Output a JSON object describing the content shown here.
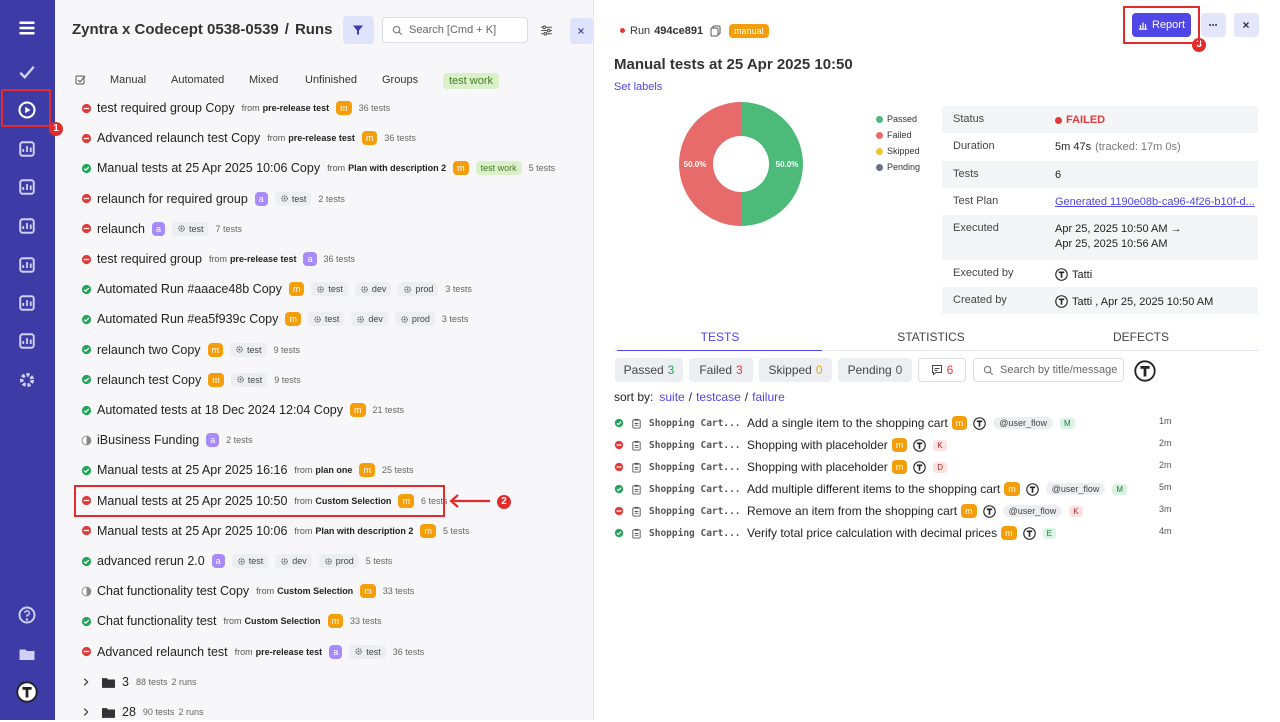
{
  "header": {
    "project": "Zyntra x Codecept 0538-0539",
    "separator": "/",
    "section": "Runs",
    "search_placeholder": "Search [Cmd + K]"
  },
  "tabs": [
    "Manual",
    "Automated",
    "Mixed",
    "Unfinished",
    "Groups",
    "test work"
  ],
  "runs": [
    {
      "status": "failed",
      "title": "test required group Copy",
      "from": "from",
      "plan": "pre-release test",
      "badge": "m",
      "tests": "36 tests"
    },
    {
      "status": "failed",
      "title": "Advanced relaunch test Copy",
      "from": "from",
      "plan": "pre-release test",
      "badge": "m",
      "tests": "36 tests"
    },
    {
      "status": "passed",
      "title": "Manual tests at 25 Apr 2025 10:06 Copy",
      "from": "from",
      "plan": "Plan with description 2",
      "badge": "m",
      "label": "test work",
      "tests": "5 tests"
    },
    {
      "status": "failed",
      "title": "relaunch for required group",
      "badge": "a",
      "tags": [
        "test"
      ],
      "tests": "2 tests"
    },
    {
      "status": "failed",
      "title": "relaunch",
      "badge": "a",
      "tags": [
        "test"
      ],
      "tests": "7 tests"
    },
    {
      "status": "failed",
      "title": "test required group",
      "from": "from",
      "plan": "pre-release test",
      "badge": "a",
      "tests": "36 tests"
    },
    {
      "status": "passed",
      "title": "Automated Run #aaace48b Copy",
      "badge": "m",
      "tags": [
        "test",
        "dev",
        "prod"
      ],
      "tests": "3 tests"
    },
    {
      "status": "passed",
      "title": "Automated Run #ea5f939c Copy",
      "badge": "m",
      "tags": [
        "test",
        "dev",
        "prod"
      ],
      "tests": "3 tests"
    },
    {
      "status": "passed",
      "title": "relaunch two Copy",
      "badge": "m",
      "tags": [
        "test"
      ],
      "tests": "9 tests"
    },
    {
      "status": "passed",
      "title": "relaunch test Copy",
      "badge": "m",
      "tags": [
        "test"
      ],
      "tests": "9 tests"
    },
    {
      "status": "passed",
      "title": "Automated tests at 18 Dec 2024 12:04 Copy",
      "badge": "m",
      "tests": "21 tests"
    },
    {
      "status": "mixed",
      "title": "iBusiness Funding",
      "badge": "a",
      "tests": "2 tests"
    },
    {
      "status": "passed",
      "title": "Manual tests at 25 Apr 2025 16:16",
      "from": "from",
      "plan": "plan one",
      "badge": "m",
      "tests": "25 tests"
    },
    {
      "status": "failed",
      "title": "Manual tests at 25 Apr 2025 10:50",
      "from": "from",
      "plan": "Custom Selection",
      "badge": "m",
      "tests": "6 tests",
      "selected": true
    },
    {
      "status": "failed",
      "title": "Manual tests at 25 Apr 2025 10:06",
      "from": "from",
      "plan": "Plan with description 2",
      "badge": "m",
      "tests": "5 tests"
    },
    {
      "status": "passed",
      "title": "advanced rerun 2.0",
      "badge": "a",
      "tags": [
        "test",
        "dev",
        "prod"
      ],
      "tests": "5 tests"
    },
    {
      "status": "mixed",
      "title": "Chat functionality test Copy",
      "from": "from",
      "plan": "Custom Selection",
      "badge": "m",
      "tests": "33 tests"
    },
    {
      "status": "passed",
      "title": "Chat functionality test",
      "from": "from",
      "plan": "Custom Selection",
      "badge": "m",
      "tests": "33 tests"
    },
    {
      "status": "failed",
      "title": "Advanced relaunch test",
      "from": "from",
      "plan": "pre-release test",
      "badge": "a",
      "tags": [
        "test"
      ],
      "tests": "36 tests"
    }
  ],
  "groups": [
    {
      "name": "3",
      "tests": "88 tests",
      "runs": "2 runs"
    },
    {
      "name": "28",
      "tests": "90 tests",
      "runs": "2 runs"
    }
  ],
  "run": {
    "label": "Run",
    "id": "494ce891",
    "kind": "manual",
    "report": "Report",
    "title": "Manual tests at 25 Apr 2025 10:50",
    "set_labels": "Set labels"
  },
  "donut": {
    "type": "pie",
    "slices": [
      {
        "name": "Passed",
        "color": "#4cbb7a",
        "value": 50,
        "value_label": "50.0%"
      },
      {
        "name": "Failed",
        "color": "#e76b6b",
        "value": 50,
        "value_label": "50.0%"
      },
      {
        "name": "Skipped",
        "color": "#f0c23b",
        "value": 0
      },
      {
        "name": "Pending",
        "color": "#6b7280",
        "value": 0
      }
    ]
  },
  "details": {
    "status": [
      "Status",
      "FAILED"
    ],
    "duration": [
      "Duration",
      "5m 47s",
      "(tracked: 17m 0s)"
    ],
    "tests": [
      "Tests",
      "6"
    ],
    "plan": [
      "Test Plan",
      "Generated 1190e08b-ca96-4f26-b10f-d..."
    ],
    "executed": [
      "Executed",
      "Apr 25, 2025 10:50 AM →",
      "Apr 25, 2025 10:56 AM"
    ],
    "executed_by": [
      "Executed by",
      "Tatti"
    ],
    "created_by": [
      "Created by",
      "Tatti , Apr 25, 2025 10:50 AM"
    ]
  },
  "detail_tabs": [
    "TESTS",
    "STATISTICS",
    "DEFECTS"
  ],
  "filters": [
    {
      "name": "Passed",
      "count": "3",
      "color": "#22a55a"
    },
    {
      "name": "Failed",
      "count": "3",
      "color": "#e03b3b"
    },
    {
      "name": "Skipped",
      "count": "0",
      "color": "#e8a317"
    },
    {
      "name": "Pending",
      "count": "0",
      "color": "#555"
    },
    {
      "count": "6",
      "color": "#e03b3b"
    }
  ],
  "test_search_placeholder": "Search by title/message",
  "sort": {
    "label": "sort by:",
    "options": [
      "suite",
      "testcase",
      "failure"
    ],
    "sep": "/"
  },
  "tests": [
    {
      "status": "passed",
      "suite": "Shopping Cart...",
      "title": "Add a single item to the shopping cart",
      "badge": "m",
      "tag": "@user_flow",
      "letter": "M",
      "time": "1m"
    },
    {
      "status": "failed",
      "suite": "Shopping Cart...",
      "title": "Shopping with placeholder",
      "badge": "m",
      "letter": "K",
      "time": "2m"
    },
    {
      "status": "failed",
      "suite": "Shopping Cart...",
      "title": "Shopping with placeholder",
      "badge": "m",
      "letter": "D",
      "time": "2m"
    },
    {
      "status": "passed",
      "suite": "Shopping Cart...",
      "title": "Add multiple different items to the shopping cart",
      "badge": "m",
      "tag": "@user_flow",
      "letter": "M",
      "time": "5m"
    },
    {
      "status": "failed",
      "suite": "Shopping Cart...",
      "title": "Remove an item from the shopping cart",
      "badge": "m",
      "tag": "@user_flow",
      "letter": "K",
      "time": "3m"
    },
    {
      "status": "passed",
      "suite": "Shopping Cart...",
      "title": "Verify total price calculation with decimal prices",
      "badge": "m",
      "letter": "E",
      "time": "4m"
    }
  ],
  "annotations": [
    "1",
    "2",
    "3"
  ]
}
